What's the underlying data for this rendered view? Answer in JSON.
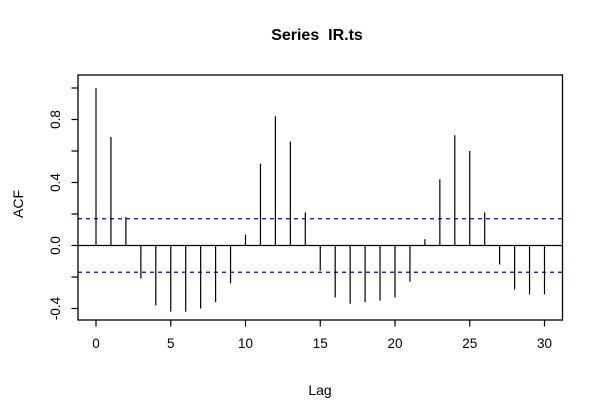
{
  "chart_data": {
    "type": "bar",
    "variant": "acf-stem-plot",
    "title": "Series  IR.ts",
    "xlabel": "Lag",
    "ylabel": "ACF",
    "x": [
      0,
      1,
      2,
      3,
      4,
      5,
      6,
      7,
      8,
      9,
      10,
      11,
      12,
      13,
      14,
      15,
      16,
      17,
      18,
      19,
      20,
      21,
      22,
      23,
      24,
      25,
      26,
      27,
      28,
      29,
      30
    ],
    "values": [
      1.0,
      0.69,
      0.18,
      -0.21,
      -0.38,
      -0.42,
      -0.42,
      -0.4,
      -0.36,
      -0.24,
      0.07,
      0.52,
      0.82,
      0.66,
      0.21,
      -0.16,
      -0.33,
      -0.37,
      -0.36,
      -0.35,
      -0.33,
      -0.23,
      0.04,
      0.42,
      0.7,
      0.6,
      0.21,
      -0.12,
      -0.28,
      -0.31,
      -0.31
    ],
    "xlim": [
      -1.2,
      31.2
    ],
    "ylim": [
      -0.48,
      1.06
    ],
    "x_axis": {
      "ticks": [
        0,
        5,
        10,
        15,
        20,
        25,
        30
      ],
      "labels": [
        "0",
        "5",
        "10",
        "15",
        "20",
        "25",
        "30"
      ]
    },
    "y_axis": {
      "minor_ticks": [
        -0.4,
        -0.2,
        0.0,
        0.2,
        0.4,
        0.6,
        0.8,
        1.0
      ],
      "labeled_ticks": [
        {
          "value": -0.4,
          "label": "-0.4"
        },
        {
          "value": 0.0,
          "label": "0.0"
        },
        {
          "value": 0.4,
          "label": "0.4"
        },
        {
          "value": 0.8,
          "label": "0.8"
        }
      ]
    },
    "confidence_bands": {
      "upper": 0.17,
      "lower": -0.17,
      "color": "#0000FF",
      "line_style": "dashed"
    },
    "zero_line": true,
    "grid": false,
    "legend": null,
    "colors": {
      "spike": "#000000",
      "frame": "#000000",
      "text": "#000000",
      "band": "#0000FF",
      "background": "#FFFFFF"
    }
  }
}
